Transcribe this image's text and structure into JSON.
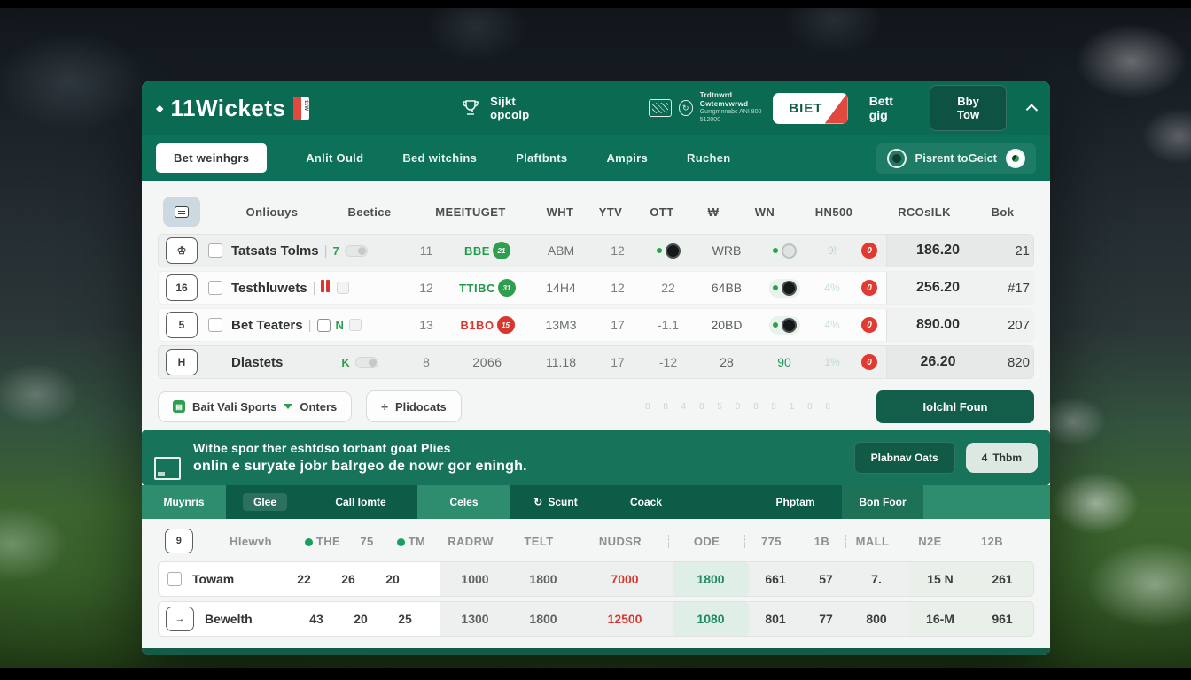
{
  "header": {
    "logo_bullet": "◆",
    "logo": "11Wickets",
    "logo_badge": "11W",
    "signup_label": "Sijkt opcolp",
    "promo_line1": "Trdtnwrd Gwtemvwrwd",
    "promo_line2": "Gurrgmnnabc ANI 800 512000",
    "promo_circle_glyph": "↻",
    "bet_button": "BIET",
    "bett_gig": "Bett gig",
    "buy_button": "Bby Tow"
  },
  "nav": {
    "items": [
      "Bet weinhgrs",
      "Anlit Ould",
      "Bed witchins",
      "Plaftbnts",
      "Ampirs",
      "Ruchen"
    ],
    "right_label": "Pisrent toGeict"
  },
  "table1": {
    "headers": [
      "Onliouys",
      "Beetice",
      "MEEITUGET",
      "WHT",
      "YTV",
      "OTT",
      "₩",
      "WN",
      "HN500",
      "RCOsILK",
      "Bok"
    ],
    "alert_glyph": "0",
    "rows": [
      {
        "icon": "♔",
        "checkbox": true,
        "name": "Tatsats Tolms",
        "sep": "|",
        "tag": {
          "style": "green-toggle",
          "text": "7"
        },
        "c1": "11",
        "badge": {
          "text": "BBE",
          "style": "green",
          "circle": "green",
          "circle_text": "21"
        },
        "code": "ABM",
        "c2": "12",
        "mid": {
          "kind": "toggle",
          "color": "black"
        },
        "c4": "WRB",
        "mid2": {
          "kind": "toggle",
          "color": "gray"
        },
        "faint": "9!",
        "amount": "186.20",
        "rank": "21",
        "shaded": true
      },
      {
        "icon": "16",
        "checkbox": true,
        "name": "Testhluwets",
        "sep": "|",
        "tag": {
          "style": "red-bars",
          "text": ""
        },
        "c1": "12",
        "badge": {
          "text": "TTIBC",
          "style": "green",
          "circle": "green",
          "circle_text": "31"
        },
        "code": "14H4",
        "c2": "12",
        "mid": {
          "kind": "num",
          "v": "22"
        },
        "c4": "64BB",
        "mid2": {
          "kind": "toggle",
          "color": "black"
        },
        "faint": "4%",
        "amount": "256.20",
        "rank": "#17",
        "shaded": false
      },
      {
        "icon": "5",
        "checkbox": true,
        "name": "Bet Teaters",
        "sep": "|",
        "tag": {
          "style": "boxes",
          "text": "N"
        },
        "c1": "13",
        "badge": {
          "text": "B1BO",
          "style": "red",
          "circle": "red",
          "circle_text": "15"
        },
        "code": "13M3",
        "c2": "17",
        "mid": {
          "kind": "num",
          "v": "-1.1"
        },
        "c4": "20BD",
        "mid2": {
          "kind": "toggle",
          "color": "black"
        },
        "faint": "4%",
        "amount": "890.00",
        "rank": "207",
        "shaded": false
      },
      {
        "icon": "H",
        "checkbox": false,
        "name": "Dlastets",
        "sep": "",
        "tag": {
          "style": "k-toggle",
          "text": "K"
        },
        "c1": "8",
        "badge": {
          "text": "2066",
          "style": "plain",
          "circle": null,
          "circle_text": ""
        },
        "code": "11.18",
        "c2": "17",
        "mid": {
          "kind": "num",
          "v": "-12"
        },
        "c4": "28",
        "mid2": {
          "kind": "green-num",
          "v": "90"
        },
        "faint": "1%",
        "amount": "26.20",
        "rank": "820",
        "shaded": true
      }
    ]
  },
  "actions": {
    "filter_label1": "Bait Vali Sports",
    "filter_label2": "Onters",
    "export_icon": "÷",
    "export_label": "Plidocats",
    "pagination": "8 8 4 8 5 0 8 5 1 0 8",
    "primary_button": "Iolclnl Foun"
  },
  "banner": {
    "line1": "Witbe spor ther eshtdso torbant goat Plies",
    "line2": "onlin e suryate jobr balrgeo de nowr gor eningh.",
    "button1": "Plabnav Oats",
    "button2_icon": "4",
    "button2": "Thbm"
  },
  "tabs": {
    "items": [
      "Muynris",
      "Glee",
      "Call Iomte",
      "Celes",
      "Scunt",
      "Coack",
      "Phptam",
      "Bon Foor"
    ],
    "refresh_glyph": "↻"
  },
  "table2": {
    "header": {
      "icon": "9",
      "name": "Hlewvh",
      "dot1": "THE",
      "n1": "75",
      "dot2": "TM",
      "c1": "RADRW",
      "c2": "TELT",
      "c3": "NUDSR",
      "c4": "ODE",
      "c5": "775",
      "c6": "1B",
      "c7": "MALL",
      "c8": "N2E",
      "c9": "12B"
    },
    "rows": [
      {
        "icon_type": "checkbox",
        "icon": "",
        "name": "Towam",
        "a": "22",
        "b": "26",
        "c": "20",
        "d": "1000",
        "e": "1800",
        "f": "7000",
        "g": "1800",
        "h": "661",
        "i": "57",
        "j": "7.",
        "k": "15 N",
        "l": "261"
      },
      {
        "icon_type": "box",
        "icon": "→",
        "name": "Bewelth",
        "a": "43",
        "b": "20",
        "c": "25",
        "d": "1300",
        "e": "1800",
        "f": "12500",
        "g": "1080",
        "h": "801",
        "i": "77",
        "j": "800",
        "k": "16-M",
        "l": "961"
      }
    ]
  }
}
